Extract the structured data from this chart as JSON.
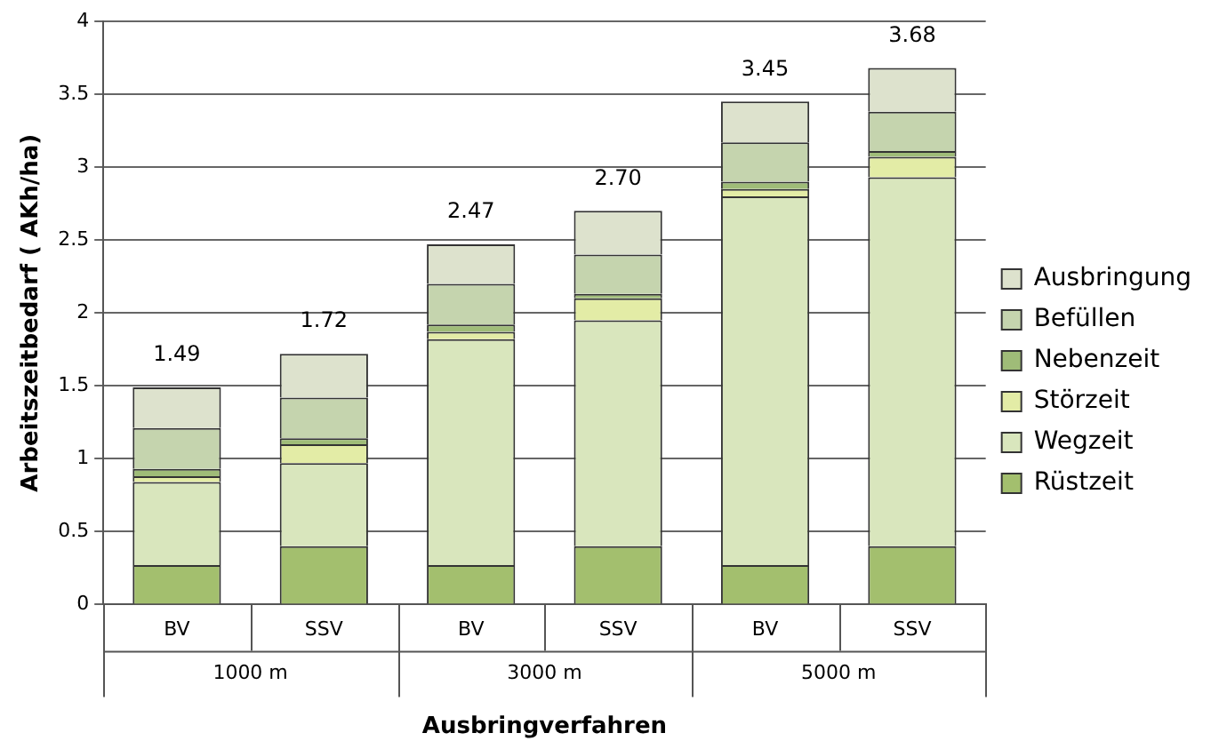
{
  "chart_data": {
    "type": "bar",
    "stacked": true,
    "xlabel": "Ausbringverfahren",
    "ylabel": "Arbeitszeitbedarf ( AKh/ha)",
    "categories": [
      "BV",
      "SSV",
      "BV",
      "SSV",
      "BV",
      "SSV"
    ],
    "series": [
      {
        "name": "Rüstzeit",
        "color": "#a3bf6e",
        "values": [
          0.27,
          0.4,
          0.27,
          0.4,
          0.27,
          0.4
        ]
      },
      {
        "name": "Wegzeit",
        "color": "#d9e6bd",
        "values": [
          0.57,
          0.57,
          1.55,
          1.55,
          2.53,
          2.53
        ]
      },
      {
        "name": "Störzeit",
        "color": "#e3eca6",
        "values": [
          0.04,
          0.13,
          0.05,
          0.15,
          0.05,
          0.14
        ]
      },
      {
        "name": "Nebenzeit",
        "color": "#9fbc78",
        "values": [
          0.05,
          0.04,
          0.05,
          0.03,
          0.05,
          0.04
        ]
      },
      {
        "name": "Befüllen",
        "color": "#c5d4ae",
        "values": [
          0.28,
          0.28,
          0.28,
          0.27,
          0.27,
          0.27
        ]
      },
      {
        "name": "Ausbringung",
        "color": "#dde2cd",
        "values": [
          0.28,
          0.3,
          0.27,
          0.3,
          0.28,
          0.3
        ]
      }
    ],
    "totals": [
      "1.49",
      "1.72",
      "2.47",
      "2.70",
      "3.45",
      "3.68"
    ],
    "annotations": [
      "1000 m",
      "3000 m",
      "5000 m"
    ],
    "ylim": [
      0,
      4
    ],
    "yticks": [
      0,
      0.5,
      1,
      1.5,
      2,
      2.5,
      3,
      3.5,
      4
    ],
    "grid": "y",
    "legend": "right"
  }
}
